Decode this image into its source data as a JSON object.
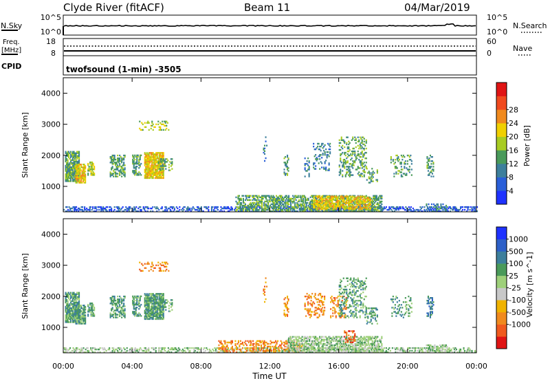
{
  "header": {
    "station": "Clyde River (fitACF)",
    "beam": "Beam 11",
    "date": "04/Mar/2019"
  },
  "top_panels": {
    "nsky_label": "N.Sky",
    "nsky_top": "10^5",
    "nsky_bottom": "10^0",
    "nsearch_label": "N.Search",
    "nsearch_top": "10^5",
    "nsearch_bottom": "10^0",
    "freq_label_1": "Freq.",
    "freq_label_2": "[MHz]",
    "freq_top": "18",
    "freq_bottom": "8",
    "nave_label": "Nave",
    "nave_top": "60",
    "nave_bottom": "0",
    "cpid_label": "CPID",
    "cpid_text": "twofsound (1-min) -3505"
  },
  "colors": {
    "power": [
      "#1e32ff",
      "#2a5fd8",
      "#3d7f9c",
      "#4a9a5a",
      "#a8cc22",
      "#f0d000",
      "#f08a1e",
      "#f04a1e",
      "#e01414"
    ],
    "velocity": [
      "#1e32ff",
      "#2d60c8",
      "#3d7f9c",
      "#4a9a5a",
      "#9ed07a",
      "#c8c8c8",
      "#f0b300",
      "#f08a1e",
      "#f05a1e",
      "#e01414"
    ]
  },
  "chart_data": [
    {
      "type": "heatmap",
      "name": "power",
      "ylabel": "Slant Range [km]",
      "ylim": [
        180,
        4500
      ],
      "yticks": [
        1000,
        2000,
        3000,
        4000
      ],
      "xlim": [
        0,
        24
      ],
      "xticks": [
        0,
        4,
        8,
        12,
        16,
        20,
        24
      ],
      "colorbar_label": "Power [dB]",
      "colorbar_ticks": [
        "4",
        "8",
        "12",
        "16",
        "20",
        "24",
        "28"
      ],
      "clusters": [
        {
          "t0": 0.1,
          "t1": 0.9,
          "r0": 1150,
          "r1": 2100,
          "lvl": 3,
          "d": 0.8
        },
        {
          "t0": 0.7,
          "t1": 1.3,
          "r0": 1100,
          "r1": 1700,
          "lvl": 5,
          "d": 0.8
        },
        {
          "t0": 1.4,
          "t1": 1.8,
          "r0": 1350,
          "r1": 1800,
          "lvl": 4,
          "d": 0.7
        },
        {
          "t0": 2.7,
          "t1": 3.6,
          "r0": 1300,
          "r1": 2000,
          "lvl": 3,
          "d": 0.5
        },
        {
          "t0": 4.0,
          "t1": 4.5,
          "r0": 1350,
          "r1": 2000,
          "lvl": 3,
          "d": 0.5
        },
        {
          "t0": 4.7,
          "t1": 5.8,
          "r0": 1250,
          "r1": 2100,
          "lvl": 5,
          "d": 0.85
        },
        {
          "t0": 5.5,
          "t1": 6.3,
          "r0": 1500,
          "r1": 1900,
          "lvl": 3,
          "d": 0.5
        },
        {
          "t0": 4.4,
          "t1": 6.1,
          "r0": 2800,
          "r1": 3100,
          "lvl": 4,
          "d": 0.25
        },
        {
          "t0": 11.6,
          "t1": 11.8,
          "r0": 1800,
          "r1": 3000,
          "lvl": 2,
          "d": 0.12
        },
        {
          "t0": 12.8,
          "t1": 13.1,
          "r0": 1300,
          "r1": 2000,
          "lvl": 3,
          "d": 0.4
        },
        {
          "t0": 14.0,
          "t1": 14.3,
          "r0": 1300,
          "r1": 1900,
          "lvl": 2,
          "d": 0.35
        },
        {
          "t0": 14.5,
          "t1": 15.5,
          "r0": 1500,
          "r1": 2400,
          "lvl": 2,
          "d": 0.22
        },
        {
          "t0": 16.0,
          "t1": 17.6,
          "r0": 1300,
          "r1": 2600,
          "lvl": 3,
          "d": 0.28
        },
        {
          "t0": 17.6,
          "t1": 18.2,
          "r0": 1100,
          "r1": 1600,
          "lvl": 3,
          "d": 0.25
        },
        {
          "t0": 19.0,
          "t1": 20.2,
          "r0": 1300,
          "r1": 2000,
          "lvl": 3,
          "d": 0.2
        },
        {
          "t0": 21.1,
          "t1": 21.5,
          "r0": 1300,
          "r1": 2000,
          "lvl": 3,
          "d": 0.35
        },
        {
          "t0": 0.0,
          "t1": 24.0,
          "r0": 180,
          "r1": 320,
          "lvl": 1,
          "d": 0.45
        },
        {
          "t0": 10.0,
          "t1": 18.5,
          "r0": 180,
          "r1": 700,
          "lvl": 3,
          "d": 0.55
        },
        {
          "t0": 14.5,
          "t1": 17.8,
          "r0": 250,
          "r1": 700,
          "lvl": 5,
          "d": 0.6
        },
        {
          "t0": 21.0,
          "t1": 22.3,
          "r0": 180,
          "r1": 450,
          "lvl": 2,
          "d": 0.45
        }
      ]
    },
    {
      "type": "heatmap",
      "name": "velocity",
      "ylabel": "Slant Range [km]",
      "xlabel": "Time UT",
      "ylim": [
        180,
        4500
      ],
      "yticks": [
        1000,
        2000,
        3000,
        4000
      ],
      "xlim": [
        0,
        24
      ],
      "xticks": [
        0,
        4,
        8,
        12,
        16,
        20,
        24
      ],
      "xticklabels": [
        "00:00",
        "04:00",
        "08:00",
        "12:00",
        "16:00",
        "20:00",
        "00:00"
      ],
      "colorbar_label": "Velocity [m s^-1]",
      "colorbar_ticks": [
        "1000",
        "500",
        "100",
        "25",
        "-25",
        "-100",
        "-500",
        "-1000"
      ],
      "clusters": [
        {
          "t0": 0.1,
          "t1": 0.9,
          "r0": 1150,
          "r1": 2100,
          "lvl": 3,
          "d": 0.8
        },
        {
          "t0": 0.7,
          "t1": 1.3,
          "r0": 1100,
          "r1": 1700,
          "lvl": 3,
          "d": 0.8
        },
        {
          "t0": 1.4,
          "t1": 1.8,
          "r0": 1350,
          "r1": 1800,
          "lvl": 3,
          "d": 0.7
        },
        {
          "t0": 2.7,
          "t1": 3.6,
          "r0": 1300,
          "r1": 2000,
          "lvl": 3,
          "d": 0.5
        },
        {
          "t0": 4.0,
          "t1": 4.5,
          "r0": 1350,
          "r1": 2000,
          "lvl": 3,
          "d": 0.5
        },
        {
          "t0": 4.7,
          "t1": 5.8,
          "r0": 1250,
          "r1": 2100,
          "lvl": 3,
          "d": 0.85
        },
        {
          "t0": 5.5,
          "t1": 6.3,
          "r0": 1500,
          "r1": 1900,
          "lvl": 3,
          "d": 0.5
        },
        {
          "t0": 4.4,
          "t1": 6.1,
          "r0": 2800,
          "r1": 3100,
          "lvl": 7,
          "d": 0.25
        },
        {
          "t0": 11.6,
          "t1": 11.8,
          "r0": 1800,
          "r1": 3000,
          "lvl": 7,
          "d": 0.12
        },
        {
          "t0": 12.8,
          "t1": 13.1,
          "r0": 1300,
          "r1": 2000,
          "lvl": 7,
          "d": 0.4
        },
        {
          "t0": 14.0,
          "t1": 15.2,
          "r0": 1300,
          "r1": 2100,
          "lvl": 7,
          "d": 0.3
        },
        {
          "t0": 15.5,
          "t1": 16.5,
          "r0": 1300,
          "r1": 2000,
          "lvl": 7,
          "d": 0.25
        },
        {
          "t0": 16.0,
          "t1": 17.6,
          "r0": 1300,
          "r1": 2600,
          "lvl": 3,
          "d": 0.28
        },
        {
          "t0": 17.6,
          "t1": 18.2,
          "r0": 1100,
          "r1": 1600,
          "lvl": 3,
          "d": 0.25
        },
        {
          "t0": 19.0,
          "t1": 20.2,
          "r0": 1300,
          "r1": 2000,
          "lvl": 3,
          "d": 0.2
        },
        {
          "t0": 21.1,
          "t1": 21.5,
          "r0": 1300,
          "r1": 2000,
          "lvl": 2,
          "d": 0.35
        },
        {
          "t0": 0.0,
          "t1": 24.0,
          "r0": 180,
          "r1": 320,
          "lvl": 4,
          "d": 0.45
        },
        {
          "t0": 9.0,
          "t1": 14.0,
          "r0": 180,
          "r1": 550,
          "lvl": 7,
          "d": 0.35
        },
        {
          "t0": 13.0,
          "t1": 18.5,
          "r0": 180,
          "r1": 700,
          "lvl": 4,
          "d": 0.55
        },
        {
          "t0": 16.3,
          "t1": 16.9,
          "r0": 500,
          "r1": 900,
          "lvl": 8,
          "d": 0.4
        },
        {
          "t0": 21.0,
          "t1": 22.3,
          "r0": 180,
          "r1": 450,
          "lvl": 4,
          "d": 0.45
        }
      ]
    }
  ]
}
